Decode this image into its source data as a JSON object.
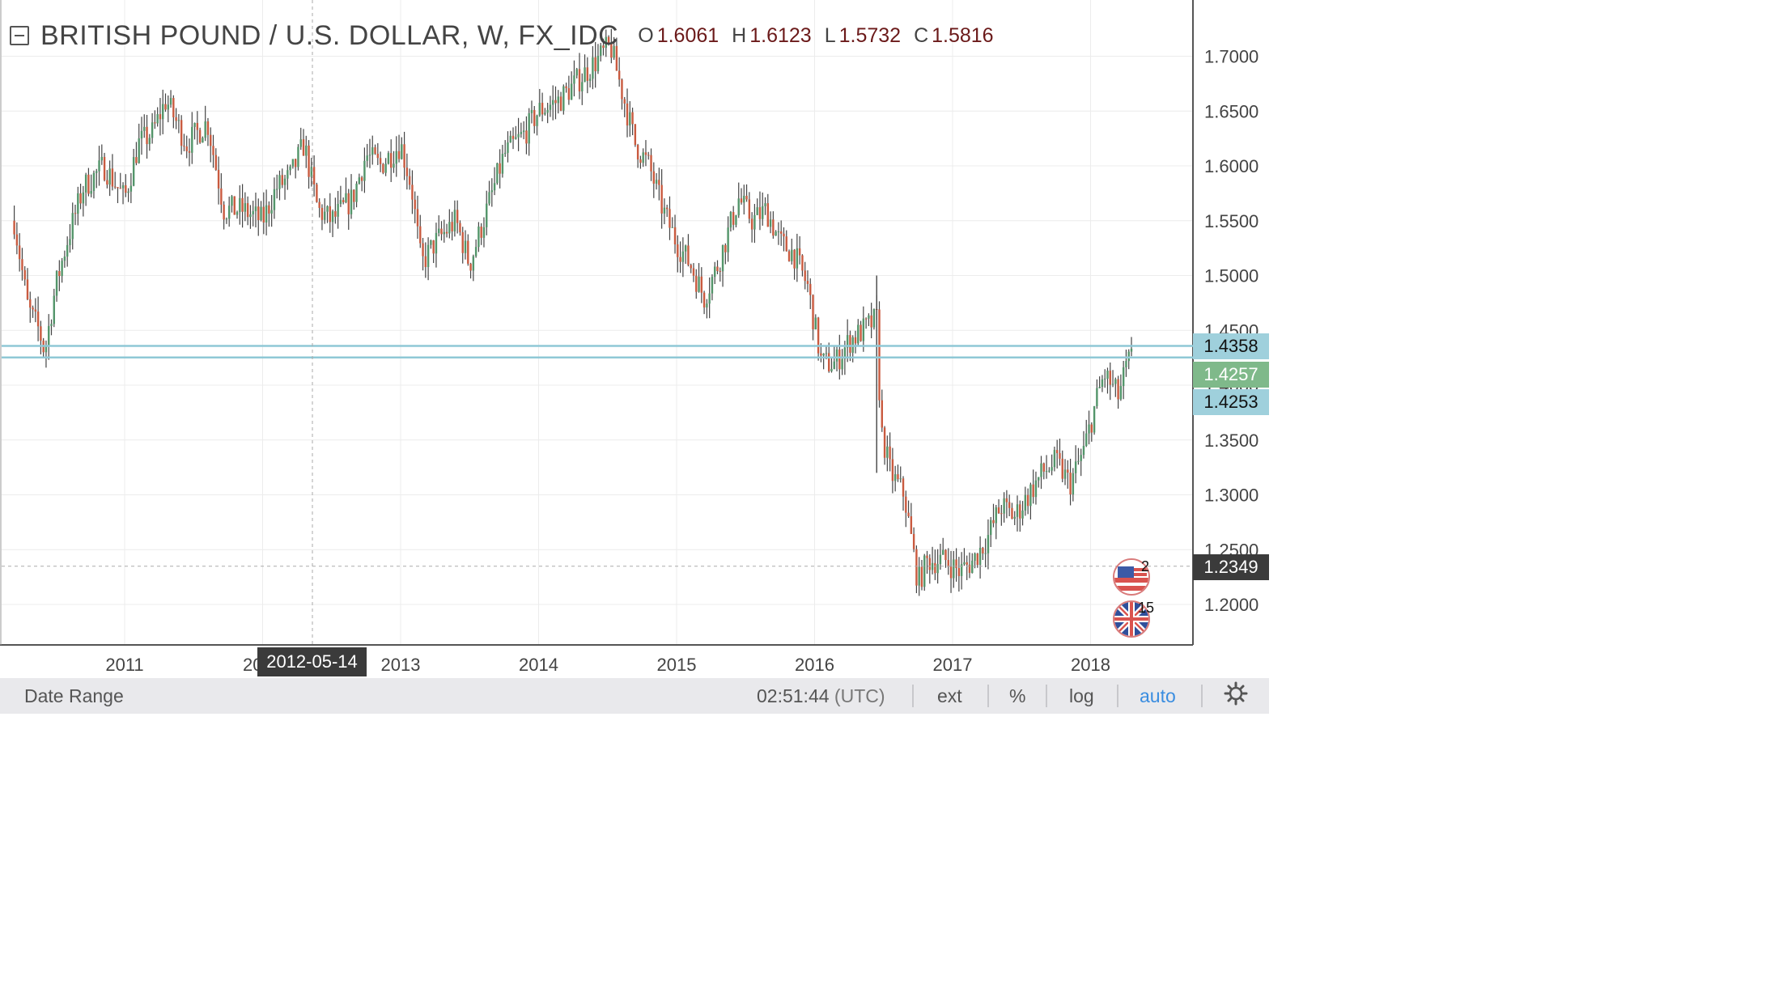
{
  "header": {
    "symbol_title": "BRITISH POUND / U.S. DOLLAR, W, FX_IDC",
    "ohlc": [
      {
        "key": "O",
        "value": "1.6061"
      },
      {
        "key": "H",
        "value": "1.6123"
      },
      {
        "key": "L",
        "value": "1.5732"
      },
      {
        "key": "C",
        "value": "1.5816"
      }
    ]
  },
  "price_labels": {
    "upper_line": "1.4358",
    "last_price": "1.4257",
    "lower_line": "1.4253",
    "crosshair": "1.2349"
  },
  "crosshair_date": "2012-05-14",
  "events": {
    "us_count": "2",
    "uk_count": "15"
  },
  "bottom_bar": {
    "date_range": "Date Range",
    "time": "02:51:44",
    "tz": "(UTC)",
    "ext": "ext",
    "percent": "%",
    "log": "log",
    "auto": "auto"
  },
  "colors": {
    "up": "#53956a",
    "down": "#c95a3f",
    "hline": "#8fc8d6",
    "grid": "#ececec"
  },
  "chart_data": {
    "type": "ohlc",
    "title": "BRITISH POUND / U.S. DOLLAR, W, FX_IDC",
    "ylim": [
      1.16,
      1.72
    ],
    "y_ticks": [
      "1.2000",
      "1.2500",
      "1.3000",
      "1.3500",
      "1.4000",
      "1.4500",
      "1.5000",
      "1.5500",
      "1.6000",
      "1.6500",
      "1.7000"
    ],
    "x_ticks": [
      "2011",
      "2012",
      "2013",
      "2014",
      "2015",
      "2016",
      "2017",
      "2018"
    ],
    "xlim": [
      2010.2,
      2018.75
    ],
    "horizontal_lines": [
      1.4358,
      1.4253
    ],
    "last_price": 1.4257,
    "crosshair": {
      "date": "2012-05-14",
      "price": 1.2349
    },
    "path": [
      [
        2010.2,
        1.55
      ],
      [
        2010.3,
        1.47
      ],
      [
        2010.38,
        1.45
      ],
      [
        2010.42,
        1.43
      ],
      [
        2010.5,
        1.49
      ],
      [
        2010.58,
        1.53
      ],
      [
        2010.7,
        1.58
      ],
      [
        2010.85,
        1.6
      ],
      [
        2011.0,
        1.57
      ],
      [
        2011.1,
        1.62
      ],
      [
        2011.2,
        1.63
      ],
      [
        2011.3,
        1.66
      ],
      [
        2011.45,
        1.62
      ],
      [
        2011.6,
        1.64
      ],
      [
        2011.72,
        1.56
      ],
      [
        2011.85,
        1.56
      ],
      [
        2012.0,
        1.55
      ],
      [
        2012.1,
        1.58
      ],
      [
        2012.2,
        1.59
      ],
      [
        2012.3,
        1.62
      ],
      [
        2012.4,
        1.56
      ],
      [
        2012.5,
        1.55
      ],
      [
        2012.65,
        1.57
      ],
      [
        2012.75,
        1.61
      ],
      [
        2012.85,
        1.6
      ],
      [
        2013.0,
        1.62
      ],
      [
        2013.08,
        1.58
      ],
      [
        2013.15,
        1.51
      ],
      [
        2013.25,
        1.53
      ],
      [
        2013.4,
        1.55
      ],
      [
        2013.5,
        1.51
      ],
      [
        2013.6,
        1.55
      ],
      [
        2013.75,
        1.61
      ],
      [
        2013.9,
        1.63
      ],
      [
        2014.0,
        1.65
      ],
      [
        2014.15,
        1.66
      ],
      [
        2014.3,
        1.68
      ],
      [
        2014.45,
        1.7
      ],
      [
        2014.52,
        1.71
      ],
      [
        2014.6,
        1.67
      ],
      [
        2014.7,
        1.62
      ],
      [
        2014.8,
        1.6
      ],
      [
        2014.9,
        1.56
      ],
      [
        2015.0,
        1.53
      ],
      [
        2015.1,
        1.51
      ],
      [
        2015.2,
        1.48
      ],
      [
        2015.3,
        1.51
      ],
      [
        2015.45,
        1.57
      ],
      [
        2015.55,
        1.55
      ],
      [
        2015.65,
        1.56
      ],
      [
        2015.75,
        1.53
      ],
      [
        2015.85,
        1.52
      ],
      [
        2015.95,
        1.49
      ],
      [
        2016.05,
        1.42
      ],
      [
        2016.15,
        1.42
      ],
      [
        2016.25,
        1.44
      ],
      [
        2016.35,
        1.45
      ],
      [
        2016.45,
        1.46
      ],
      [
        2016.48,
        1.36
      ],
      [
        2016.55,
        1.32
      ],
      [
        2016.65,
        1.3
      ],
      [
        2016.75,
        1.22
      ],
      [
        2016.82,
        1.24
      ],
      [
        2016.95,
        1.24
      ],
      [
        2017.05,
        1.23
      ],
      [
        2017.15,
        1.24
      ],
      [
        2017.25,
        1.26
      ],
      [
        2017.35,
        1.29
      ],
      [
        2017.45,
        1.28
      ],
      [
        2017.55,
        1.3
      ],
      [
        2017.65,
        1.32
      ],
      [
        2017.75,
        1.33
      ],
      [
        2017.85,
        1.31
      ],
      [
        2017.95,
        1.34
      ],
      [
        2018.05,
        1.39
      ],
      [
        2018.1,
        1.41
      ],
      [
        2018.2,
        1.39
      ],
      [
        2018.27,
        1.42
      ],
      [
        2018.3,
        1.425
      ]
    ]
  }
}
